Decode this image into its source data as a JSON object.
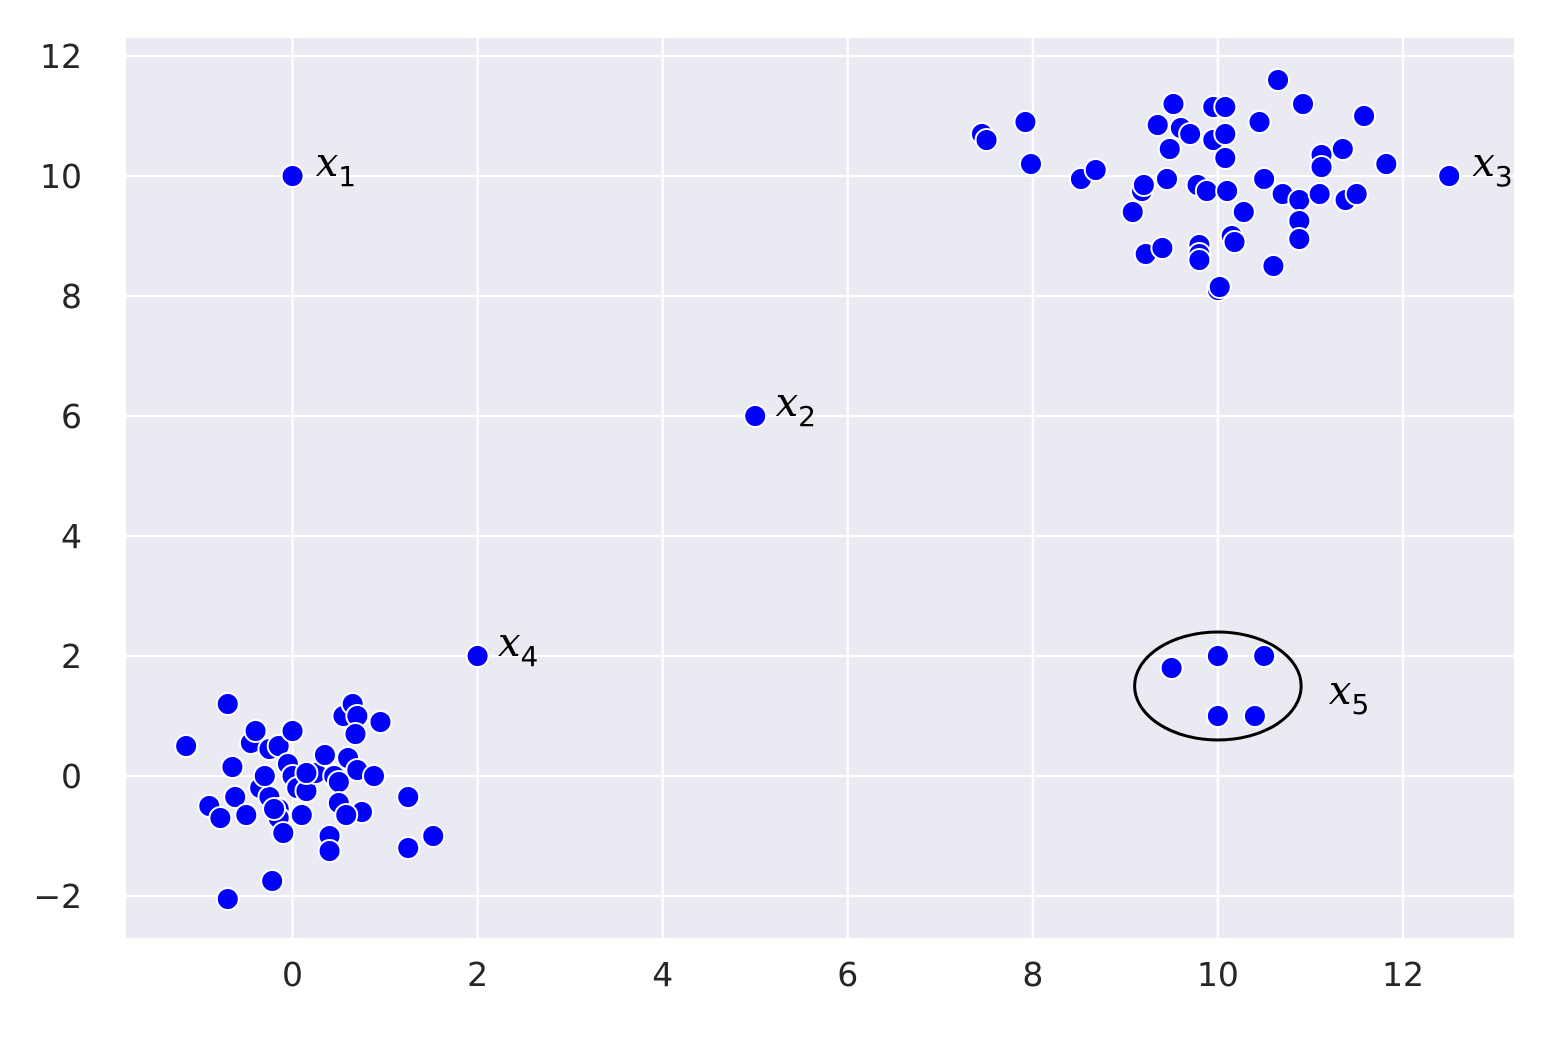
{
  "chart_data": {
    "type": "scatter",
    "title": "",
    "xlabel": "",
    "ylabel": "",
    "xlim": [
      -1.8,
      13.2
    ],
    "ylim": [
      -2.7,
      12.3
    ],
    "grid": true,
    "colors": {
      "background": "#eaeaf2",
      "grid": "#ffffff",
      "point": "#0000ff",
      "point_edge": "#ffffff",
      "circle": "#000000"
    },
    "x_ticks": [
      0,
      2,
      4,
      6,
      8,
      10,
      12
    ],
    "x_tick_labels": [
      "0",
      "2",
      "4",
      "6",
      "8",
      "10",
      "12"
    ],
    "y_ticks": [
      -2,
      0,
      2,
      4,
      6,
      8,
      10,
      12
    ],
    "y_tick_labels": [
      "−2",
      "0",
      "2",
      "4",
      "6",
      "8",
      "10",
      "12"
    ],
    "series": [
      {
        "color": "#0000ff",
        "points": [
          [
            -1.15,
            0.5
          ],
          [
            -0.7,
            1.2
          ],
          [
            -0.45,
            0.55
          ],
          [
            -0.4,
            0.75
          ],
          [
            -0.25,
            0.45
          ],
          [
            -0.15,
            0.5
          ],
          [
            0.0,
            0.75
          ],
          [
            -0.65,
            0.15
          ],
          [
            -0.9,
            -0.5
          ],
          [
            -0.78,
            -0.7
          ],
          [
            -0.62,
            -0.35
          ],
          [
            -0.5,
            -0.65
          ],
          [
            -0.35,
            -0.2
          ],
          [
            -0.25,
            -0.35
          ],
          [
            -0.15,
            -0.55
          ],
          [
            -0.15,
            -0.7
          ],
          [
            -0.1,
            -0.95
          ],
          [
            -0.05,
            0.2
          ],
          [
            0.0,
            0.0
          ],
          [
            0.05,
            -0.2
          ],
          [
            0.1,
            -0.65
          ],
          [
            0.15,
            -0.25
          ],
          [
            0.25,
            0.05
          ],
          [
            0.35,
            0.35
          ],
          [
            0.45,
            0.0
          ],
          [
            0.5,
            -0.1
          ],
          [
            0.5,
            -0.45
          ],
          [
            0.55,
            1.0
          ],
          [
            0.6,
            0.3
          ],
          [
            0.65,
            1.2
          ],
          [
            0.7,
            1.0
          ],
          [
            0.68,
            0.7
          ],
          [
            0.7,
            0.1
          ],
          [
            0.75,
            -0.6
          ],
          [
            0.88,
            0.0
          ],
          [
            0.95,
            0.9
          ],
          [
            1.25,
            -0.35
          ],
          [
            1.25,
            -1.2
          ],
          [
            1.52,
            -1.0
          ],
          [
            0.58,
            -0.65
          ],
          [
            0.4,
            -1.0
          ],
          [
            0.4,
            -1.25
          ],
          [
            -0.22,
            -1.75
          ],
          [
            -0.7,
            -2.05
          ],
          [
            -0.2,
            -0.55
          ],
          [
            0.15,
            0.05
          ],
          [
            -0.3,
            0.0
          ],
          [
            7.45,
            10.7
          ],
          [
            7.5,
            10.6
          ],
          [
            7.92,
            10.9
          ],
          [
            7.98,
            10.2
          ],
          [
            8.52,
            9.95
          ],
          [
            8.68,
            10.1
          ],
          [
            9.08,
            9.4
          ],
          [
            9.18,
            9.75
          ],
          [
            9.2,
            9.85
          ],
          [
            9.22,
            8.7
          ],
          [
            9.35,
            10.85
          ],
          [
            9.4,
            8.8
          ],
          [
            9.45,
            9.95
          ],
          [
            9.48,
            10.45
          ],
          [
            9.52,
            11.2
          ],
          [
            9.6,
            10.8
          ],
          [
            9.7,
            10.7
          ],
          [
            9.78,
            9.85
          ],
          [
            9.8,
            8.85
          ],
          [
            9.8,
            8.7
          ],
          [
            9.8,
            8.6
          ],
          [
            9.88,
            9.75
          ],
          [
            9.95,
            11.15
          ],
          [
            9.95,
            10.6
          ],
          [
            10.0,
            8.1
          ],
          [
            10.02,
            8.15
          ],
          [
            10.08,
            11.15
          ],
          [
            10.08,
            10.7
          ],
          [
            10.08,
            10.3
          ],
          [
            10.1,
            9.75
          ],
          [
            10.15,
            9.0
          ],
          [
            10.18,
            8.9
          ],
          [
            10.28,
            9.4
          ],
          [
            10.45,
            10.9
          ],
          [
            10.5,
            9.95
          ],
          [
            10.6,
            8.5
          ],
          [
            10.65,
            11.6
          ],
          [
            10.7,
            9.7
          ],
          [
            10.88,
            9.6
          ],
          [
            10.88,
            9.25
          ],
          [
            10.88,
            8.95
          ],
          [
            10.92,
            11.2
          ],
          [
            11.1,
            9.7
          ],
          [
            11.12,
            10.35
          ],
          [
            11.12,
            10.15
          ],
          [
            11.35,
            10.45
          ],
          [
            11.38,
            9.6
          ],
          [
            11.5,
            9.7
          ],
          [
            11.58,
            11.0
          ],
          [
            11.82,
            10.2
          ],
          [
            12.5,
            10.0
          ],
          [
            0.0,
            10.0
          ],
          [
            5.0,
            6.0
          ],
          [
            2.0,
            2.0
          ],
          [
            9.5,
            1.8
          ],
          [
            10.0,
            2.0
          ],
          [
            10.5,
            2.0
          ],
          [
            10.0,
            1.0
          ],
          [
            10.4,
            1.0
          ]
        ]
      }
    ],
    "annotations": [
      {
        "main": "x",
        "sub": "1",
        "x": 0.25,
        "y": 10.0
      },
      {
        "main": "x",
        "sub": "2",
        "x": 5.22,
        "y": 6.0
      },
      {
        "main": "x",
        "sub": "3",
        "x": 12.75,
        "y": 10.0
      },
      {
        "main": "x",
        "sub": "4",
        "x": 2.22,
        "y": 2.0
      },
      {
        "main": "x",
        "sub": "5",
        "x": 11.2,
        "y": 1.2
      }
    ],
    "circle": {
      "cx": 10.0,
      "cy": 1.5,
      "r": 0.9
    }
  }
}
